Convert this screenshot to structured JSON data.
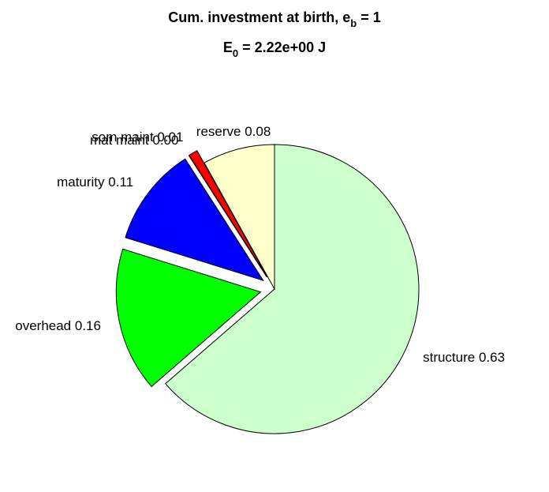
{
  "chart_data": {
    "type": "pie",
    "title_parts": [
      "Cum. investment at birth, e",
      "b",
      " = 1"
    ],
    "subtitle_parts": [
      "E",
      "0",
      " = 2.22e+00 J"
    ],
    "categories": [
      "structure",
      "overhead",
      "maturity",
      "mat maint",
      "som maint",
      "reserve"
    ],
    "values": [
      0.63,
      0.16,
      0.11,
      0,
      0.01,
      0.08
    ],
    "value_labels": [
      "0.63",
      "0.16",
      "0.11",
      "0.00",
      "0.01",
      "0.08"
    ],
    "colors": [
      "#ccffcc",
      "#00ff00",
      "#0000ff",
      "#800000",
      "#ff0000",
      "#ffffcc"
    ],
    "explode": [
      false,
      true,
      true,
      true,
      true,
      false
    ]
  }
}
